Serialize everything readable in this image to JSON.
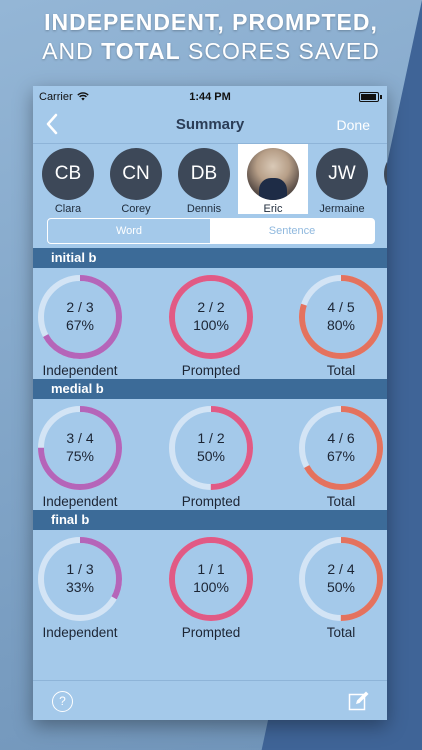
{
  "banner": {
    "line1": "INDEPENDENT, PROMPTED,",
    "line2_pre": "AND ",
    "line2_bold": "TOTAL",
    "line2_post": " SCORES SAVED"
  },
  "status": {
    "carrier": "Carrier",
    "time": "1:44 PM"
  },
  "nav": {
    "back_icon": "chevron-left-icon",
    "title": "Summary",
    "done_label": "Done"
  },
  "students": [
    {
      "initials": "CB",
      "name": "Clara"
    },
    {
      "initials": "CN",
      "name": "Corey"
    },
    {
      "initials": "DB",
      "name": "Dennis"
    },
    {
      "initials": "",
      "name": "Eric",
      "selected": true
    },
    {
      "initials": "JW",
      "name": "Jermaine"
    }
  ],
  "segment": {
    "word": "Word",
    "sentence": "Sentence",
    "selected": "Word"
  },
  "sections": [
    {
      "title": "initial b",
      "scores": [
        {
          "label": "Independent",
          "fraction": "2 / 3",
          "percent": "67%",
          "value": 0.67,
          "color": "#b565b9"
        },
        {
          "label": "Prompted",
          "fraction": "2 / 2",
          "percent": "100%",
          "value": 1.0,
          "color": "#e15a85"
        },
        {
          "label": "Total",
          "fraction": "4 / 5",
          "percent": "80%",
          "value": 0.8,
          "color": "#e4725e"
        }
      ]
    },
    {
      "title": "medial b",
      "scores": [
        {
          "label": "Independent",
          "fraction": "3 / 4",
          "percent": "75%",
          "value": 0.75,
          "color": "#b565b9"
        },
        {
          "label": "Prompted",
          "fraction": "1 / 2",
          "percent": "50%",
          "value": 0.5,
          "color": "#e15a85"
        },
        {
          "label": "Total",
          "fraction": "4 / 6",
          "percent": "67%",
          "value": 0.67,
          "color": "#e4725e"
        }
      ]
    },
    {
      "title": "final b",
      "scores": [
        {
          "label": "Independent",
          "fraction": "1 / 3",
          "percent": "33%",
          "value": 0.33,
          "color": "#b565b9"
        },
        {
          "label": "Prompted",
          "fraction": "1 / 1",
          "percent": "100%",
          "value": 1.0,
          "color": "#e15a85"
        },
        {
          "label": "Total",
          "fraction": "2 / 4",
          "percent": "50%",
          "value": 0.5,
          "color": "#e4725e"
        }
      ]
    }
  ],
  "toolbar": {
    "help_icon": "question-mark-icon",
    "help_glyph": "?",
    "edit_icon": "edit-icon"
  },
  "colors": {
    "track": "#d3e4f5",
    "header": "#3c6b98",
    "background": "#a4c9ea"
  }
}
